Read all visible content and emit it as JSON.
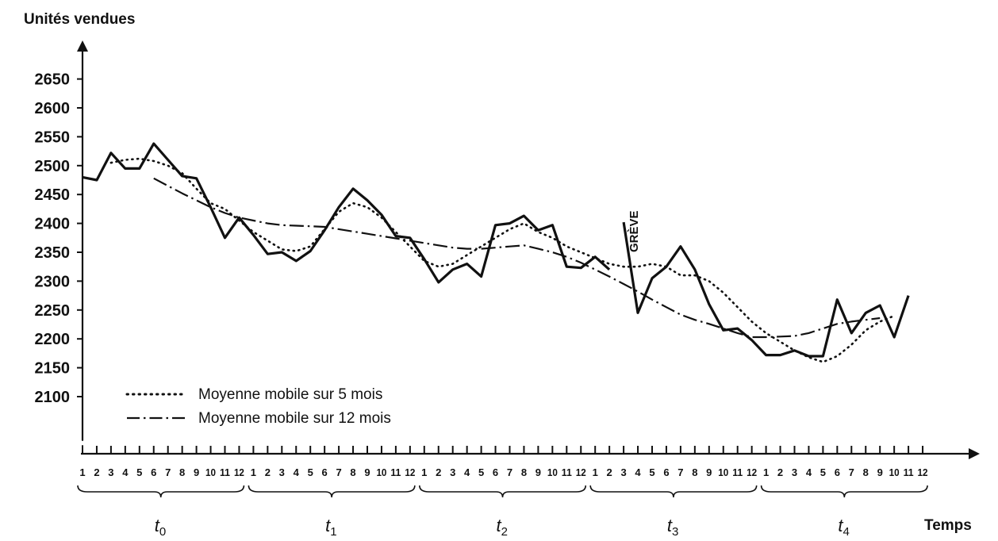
{
  "chart_data": {
    "type": "line",
    "ylabel": "Unités vendues",
    "xlabel": "Temps",
    "ylim": [
      2050,
      2680
    ],
    "yticks": [
      2100,
      2150,
      2200,
      2250,
      2300,
      2350,
      2400,
      2450,
      2500,
      2550,
      2600,
      2650
    ],
    "x_tick_labels": [
      "1",
      "2",
      "3",
      "4",
      "5",
      "6",
      "7",
      "8",
      "9",
      "10",
      "11",
      "12"
    ],
    "periods": [
      "t0",
      "t1",
      "t2",
      "t3",
      "t4"
    ],
    "annotation": "GRÈVE",
    "legend_position": "bottom-left",
    "series": [
      {
        "name": "",
        "style": "solid",
        "segments": [
          {
            "start_month": 1,
            "values": [
              2480,
              2475,
              2522,
              2495,
              2495,
              2538,
              2510,
              2482,
              2478,
              2428,
              2375,
              2410,
              2380,
              2347,
              2350,
              2335,
              2352,
              2388,
              2428,
              2460,
              2440,
              2415,
              2378,
              2375,
              2338,
              2298,
              2320,
              2330,
              2308,
              2397,
              2400,
              2413,
              2388,
              2397,
              2325,
              2323,
              2342,
              2320
            ]
          },
          {
            "start_month": 39,
            "values": [
              2402,
              2245,
              2305,
              2325,
              2360,
              2320,
              2260,
              2215,
              2218,
              2198,
              2172,
              2172,
              2180,
              2170,
              2170,
              2268,
              2210,
              2245,
              2258,
              2203,
              2275
            ]
          }
        ]
      },
      {
        "name": "Moyenne mobile sur 5 mois",
        "style": "dotted",
        "segments": [
          {
            "start_month": 3,
            "values": [
              2505,
              2510,
              2512,
              2508,
              2500,
              2487,
              2460,
              2435,
              2425,
              2405,
              2385,
              2370,
              2355,
              2352,
              2360,
              2390,
              2420,
              2435,
              2428,
              2410,
              2385,
              2360,
              2335,
              2325,
              2330,
              2345,
              2360,
              2375,
              2390,
              2400,
              2385,
              2375,
              2360,
              2350,
              2340,
              2330,
              2325,
              2325,
              2330,
              2325,
              2310,
              2310,
              2300,
              2280,
              2255,
              2230,
              2210,
              2195,
              2180,
              2168,
              2160,
              2170,
              2190,
              2215,
              2230,
              2240
            ]
          }
        ]
      },
      {
        "name": "Moyenne mobile sur 12 mois",
        "style": "dashdot",
        "segments": [
          {
            "start_month": 6,
            "values": [
              2478,
              2465,
              2452,
              2440,
              2428,
              2418,
              2410,
              2405,
              2400,
              2397,
              2396,
              2395,
              2394,
              2390,
              2386,
              2382,
              2378,
              2374,
              2370,
              2366,
              2362,
              2358,
              2356,
              2356,
              2358,
              2360,
              2362,
              2356,
              2350,
              2342,
              2332,
              2320,
              2308,
              2295,
              2282,
              2268,
              2255,
              2242,
              2233,
              2226,
              2218,
              2210,
              2203,
              2203,
              2204,
              2205,
              2210,
              2218,
              2226,
              2230,
              2233,
              2236
            ]
          }
        ]
      }
    ]
  }
}
